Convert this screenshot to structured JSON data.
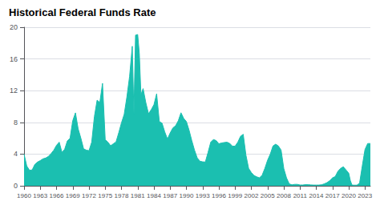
{
  "chart_data": {
    "type": "area",
    "title": "Historical Federal Funds Rate",
    "color": "#1bbfb0",
    "xlim": [
      1960,
      2024
    ],
    "xticks": [
      1960,
      1963,
      1966,
      1969,
      1972,
      1975,
      1978,
      1981,
      1984,
      1987,
      1990,
      1993,
      1996,
      1999,
      2002,
      2005,
      2008,
      2011,
      2014,
      2017,
      2020,
      2023
    ],
    "ylim": [
      0,
      20
    ],
    "yticks": [
      0,
      4,
      8,
      12,
      16,
      20
    ],
    "grid": "y",
    "x": [
      1960.0,
      1960.5,
      1961.0,
      1961.5,
      1962.0,
      1962.5,
      1963.0,
      1963.5,
      1964.0,
      1964.5,
      1965.0,
      1965.5,
      1966.0,
      1966.5,
      1967.0,
      1967.5,
      1968.0,
      1968.5,
      1969.0,
      1969.5,
      1970.0,
      1970.5,
      1971.0,
      1971.5,
      1972.0,
      1972.5,
      1973.0,
      1973.5,
      1974.0,
      1974.5,
      1975.0,
      1975.5,
      1976.0,
      1976.5,
      1977.0,
      1977.5,
      1978.0,
      1978.5,
      1979.0,
      1979.5,
      1980.0,
      1980.3,
      1980.6,
      1981.0,
      1981.3,
      1981.6,
      1982.0,
      1982.5,
      1983.0,
      1983.5,
      1984.0,
      1984.5,
      1985.0,
      1985.5,
      1986.0,
      1986.5,
      1987.0,
      1987.5,
      1988.0,
      1988.5,
      1989.0,
      1989.5,
      1990.0,
      1990.5,
      1991.0,
      1991.5,
      1992.0,
      1992.5,
      1993.0,
      1993.5,
      1994.0,
      1994.5,
      1995.0,
      1995.5,
      1996.0,
      1996.5,
      1997.0,
      1997.5,
      1998.0,
      1998.5,
      1999.0,
      1999.5,
      2000.0,
      2000.5,
      2001.0,
      2001.5,
      2002.0,
      2002.5,
      2003.0,
      2003.5,
      2004.0,
      2004.5,
      2005.0,
      2005.5,
      2006.0,
      2006.5,
      2007.0,
      2007.5,
      2008.0,
      2008.5,
      2009.0,
      2009.5,
      2010.0,
      2010.5,
      2011.0,
      2011.5,
      2012.0,
      2012.5,
      2013.0,
      2013.5,
      2014.0,
      2014.5,
      2015.0,
      2015.5,
      2016.0,
      2016.5,
      2017.0,
      2017.5,
      2018.0,
      2018.5,
      2019.0,
      2019.5,
      2020.0,
      2020.3,
      2020.6,
      2021.0,
      2021.5,
      2022.0,
      2022.5,
      2023.0,
      2023.5,
      2024.0
    ],
    "values": [
      3.99,
      2.5,
      1.96,
      2.0,
      2.71,
      3.0,
      3.18,
      3.4,
      3.5,
      3.7,
      4.07,
      4.5,
      5.11,
      5.5,
      4.22,
      4.6,
      5.66,
      6.0,
      8.22,
      9.2,
      7.18,
      6.0,
      4.67,
      4.5,
      4.43,
      5.5,
      8.74,
      10.8,
      10.51,
      12.92,
      5.82,
      5.5,
      5.05,
      5.3,
      5.54,
      6.7,
      7.94,
      9.0,
      11.19,
      13.8,
      17.6,
      9.0,
      19.0,
      19.08,
      16.7,
      11.5,
      12.26,
      10.5,
      9.09,
      9.6,
      10.23,
      11.6,
      8.1,
      7.9,
      6.8,
      5.9,
      6.66,
      7.3,
      7.57,
      8.2,
      9.21,
      8.5,
      8.1,
      7.0,
      5.69,
      4.5,
      3.52,
      3.1,
      3.02,
      3.0,
      4.21,
      5.5,
      5.84,
      5.7,
      5.3,
      5.4,
      5.46,
      5.5,
      5.35,
      5.0,
      5.0,
      5.5,
      6.24,
      6.5,
      3.88,
      2.2,
      1.67,
      1.3,
      1.13,
      1.0,
      1.35,
      2.2,
      3.22,
      4.0,
      5.02,
      5.25,
      5.02,
      4.5,
      2.18,
      1.0,
      0.24,
      0.12,
      0.18,
      0.18,
      0.1,
      0.1,
      0.14,
      0.14,
      0.11,
      0.09,
      0.09,
      0.09,
      0.13,
      0.25,
      0.4,
      0.66,
      1.0,
      1.16,
      1.83,
      2.2,
      2.4,
      2.0,
      1.58,
      0.65,
      0.09,
      0.08,
      0.08,
      0.33,
      2.5,
      4.57,
      5.33,
      5.33
    ]
  }
}
